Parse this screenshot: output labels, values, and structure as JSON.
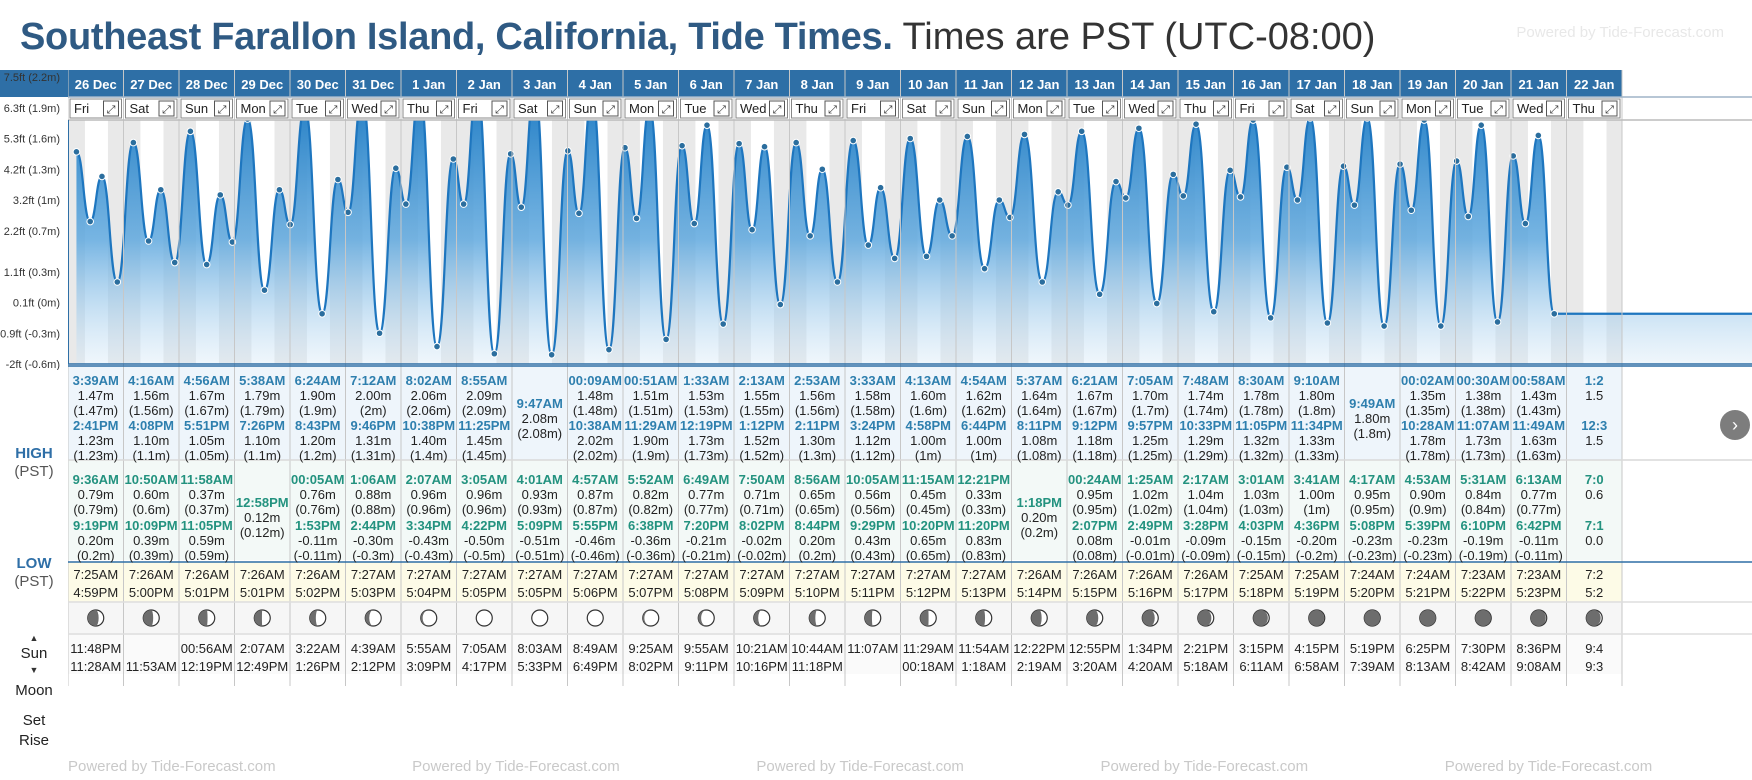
{
  "title": {
    "location": "Southeast Farallon Island, California, Tide Times.",
    "timezone": "Times are PST (UTC-08:00)"
  },
  "powered_by": "Powered by Tide-Forecast.com",
  "row_labels": {
    "high": "HIGH",
    "low": "LOW",
    "zone": "(PST)",
    "sun": "Sun",
    "moon": "Moon",
    "set": "Set",
    "rise": "Rise"
  },
  "axis_labels": [
    "7.5ft (2.2m)",
    "6.3ft (1.9m)",
    "5.3ft (1.6m)",
    "4.2ft (1.3m)",
    "3.2ft (1m)",
    "2.2ft (0.7m)",
    "1.1ft (0.3m)",
    "0.1ft (0m)",
    "-0.9ft (-0.3m)",
    "-2ft (-0.6m)"
  ],
  "days": [
    {
      "date": "26 Dec",
      "dow": "Fri",
      "high": [
        [
          "3:39AM",
          "1.47m",
          "(1.47m)"
        ],
        [
          "2:41PM",
          "1.23m",
          "(1.23m)"
        ]
      ],
      "low": [
        [
          "9:36AM",
          "0.79m",
          "(0.79m)"
        ],
        [
          "9:19PM",
          "0.20m",
          "(0.2m)"
        ]
      ],
      "sun": [
        "7:25AM",
        "4:59PM"
      ],
      "moon": [
        "11:48PM",
        "11:28AM"
      ],
      "phase": 0.32
    },
    {
      "date": "27 Dec",
      "dow": "Sat",
      "high": [
        [
          "4:16AM",
          "1.56m",
          "(1.56m)"
        ],
        [
          "4:08PM",
          "1.10m",
          "(1.1m)"
        ]
      ],
      "low": [
        [
          "10:50AM",
          "0.60m",
          "(0.6m)"
        ],
        [
          "10:09PM",
          "0.39m",
          "(0.39m)"
        ]
      ],
      "sun": [
        "7:26AM",
        "5:00PM"
      ],
      "moon": [
        "",
        "11:53AM"
      ],
      "phase": 0.38
    },
    {
      "date": "28 Dec",
      "dow": "Sun",
      "high": [
        [
          "4:56AM",
          "1.67m",
          "(1.67m)"
        ],
        [
          "5:51PM",
          "1.05m",
          "(1.05m)"
        ]
      ],
      "low": [
        [
          "11:58AM",
          "0.37m",
          "(0.37m)"
        ],
        [
          "11:05PM",
          "0.59m",
          "(0.59m)"
        ]
      ],
      "sun": [
        "7:26AM",
        "5:01PM"
      ],
      "moon": [
        "00:56AM",
        "12:19PM"
      ],
      "phase": 0.45
    },
    {
      "date": "29 Dec",
      "dow": "Mon",
      "high": [
        [
          "5:38AM",
          "1.79m",
          "(1.79m)"
        ],
        [
          "7:26PM",
          "1.10m",
          "(1.1m)"
        ]
      ],
      "low": [
        [
          "12:58PM",
          "0.12m",
          "(0.12m)"
        ]
      ],
      "sun": [
        "7:26AM",
        "5:01PM"
      ],
      "moon": [
        "2:07AM",
        "12:49PM"
      ],
      "phase": 0.52
    },
    {
      "date": "30 Dec",
      "dow": "Tue",
      "high": [
        [
          "6:24AM",
          "1.90m",
          "(1.9m)"
        ],
        [
          "8:43PM",
          "1.20m",
          "(1.2m)"
        ]
      ],
      "low": [
        [
          "00:05AM",
          "0.76m",
          "(0.76m)"
        ],
        [
          "1:53PM",
          "-0.11m",
          "(-0.11m)"
        ]
      ],
      "sun": [
        "7:26AM",
        "5:02PM"
      ],
      "moon": [
        "3:22AM",
        "1:26PM"
      ],
      "phase": 0.62
    },
    {
      "date": "31 Dec",
      "dow": "Wed",
      "high": [
        [
          "7:12AM",
          "2.00m",
          "(2m)"
        ],
        [
          "9:46PM",
          "1.31m",
          "(1.31m)"
        ]
      ],
      "low": [
        [
          "1:06AM",
          "0.88m",
          "(0.88m)"
        ],
        [
          "2:44PM",
          "-0.30m",
          "(-0.3m)"
        ]
      ],
      "sun": [
        "7:27AM",
        "5:03PM"
      ],
      "moon": [
        "4:39AM",
        "2:12PM"
      ],
      "phase": 0.75
    },
    {
      "date": "1 Jan",
      "dow": "Thu",
      "high": [
        [
          "8:02AM",
          "2.06m",
          "(2.06m)"
        ],
        [
          "10:38PM",
          "1.40m",
          "(1.4m)"
        ]
      ],
      "low": [
        [
          "2:07AM",
          "0.96m",
          "(0.96m)"
        ],
        [
          "3:34PM",
          "-0.43m",
          "(-0.43m)"
        ]
      ],
      "sun": [
        "7:27AM",
        "5:04PM"
      ],
      "moon": [
        "5:55AM",
        "3:09PM"
      ],
      "phase": 0.88
    },
    {
      "date": "2 Jan",
      "dow": "Fri",
      "high": [
        [
          "8:55AM",
          "2.09m",
          "(2.09m)"
        ],
        [
          "11:25PM",
          "1.45m",
          "(1.45m)"
        ]
      ],
      "low": [
        [
          "3:05AM",
          "0.96m",
          "(0.96m)"
        ],
        [
          "4:22PM",
          "-0.50m",
          "(-0.5m)"
        ]
      ],
      "sun": [
        "7:27AM",
        "5:05PM"
      ],
      "moon": [
        "7:05AM",
        "4:17PM"
      ],
      "phase": 0.98
    },
    {
      "date": "3 Jan",
      "dow": "Sat",
      "high": [
        [
          "9:47AM",
          "2.08m",
          "(2.08m)"
        ]
      ],
      "low": [
        [
          "4:01AM",
          "0.93m",
          "(0.93m)"
        ],
        [
          "5:09PM",
          "-0.51m",
          "(-0.51m)"
        ]
      ],
      "sun": [
        "7:27AM",
        "5:05PM"
      ],
      "moon": [
        "8:03AM",
        "5:33PM"
      ],
      "phase": 1.0
    },
    {
      "date": "4 Jan",
      "dow": "Sun",
      "high": [
        [
          "00:09AM",
          "1.48m",
          "(1.48m)"
        ],
        [
          "10:38AM",
          "2.02m",
          "(2.02m)"
        ]
      ],
      "low": [
        [
          "4:57AM",
          "0.87m",
          "(0.87m)"
        ],
        [
          "5:55PM",
          "-0.46m",
          "(-0.46m)"
        ]
      ],
      "sun": [
        "7:27AM",
        "5:06PM"
      ],
      "moon": [
        "8:49AM",
        "6:49PM"
      ],
      "phase": 0.97
    },
    {
      "date": "5 Jan",
      "dow": "Mon",
      "high": [
        [
          "00:51AM",
          "1.51m",
          "(1.51m)"
        ],
        [
          "11:29AM",
          "1.90m",
          "(1.9m)"
        ]
      ],
      "low": [
        [
          "5:52AM",
          "0.82m",
          "(0.82m)"
        ],
        [
          "6:38PM",
          "-0.36m",
          "(-0.36m)"
        ]
      ],
      "sun": [
        "7:27AM",
        "5:07PM"
      ],
      "moon": [
        "9:25AM",
        "8:02PM"
      ],
      "phase": 0.9
    },
    {
      "date": "6 Jan",
      "dow": "Tue",
      "high": [
        [
          "1:33AM",
          "1.53m",
          "(1.53m)"
        ],
        [
          "12:19PM",
          "1.73m",
          "(1.73m)"
        ]
      ],
      "low": [
        [
          "6:49AM",
          "0.77m",
          "(0.77m)"
        ],
        [
          "7:20PM",
          "-0.21m",
          "(-0.21m)"
        ]
      ],
      "sun": [
        "7:27AM",
        "5:08PM"
      ],
      "moon": [
        "9:55AM",
        "9:11PM"
      ],
      "phase": 0.82
    },
    {
      "date": "7 Jan",
      "dow": "Wed",
      "high": [
        [
          "2:13AM",
          "1.55m",
          "(1.55m)"
        ],
        [
          "1:12PM",
          "1.52m",
          "(1.52m)"
        ]
      ],
      "low": [
        [
          "7:50AM",
          "0.71m",
          "(0.71m)"
        ],
        [
          "8:02PM",
          "-0.02m",
          "(-0.02m)"
        ]
      ],
      "sun": [
        "7:27AM",
        "5:09PM"
      ],
      "moon": [
        "10:21AM",
        "10:16PM"
      ],
      "phase": 0.72
    },
    {
      "date": "8 Jan",
      "dow": "Thu",
      "high": [
        [
          "2:53AM",
          "1.56m",
          "(1.56m)"
        ],
        [
          "2:11PM",
          "1.30m",
          "(1.3m)"
        ]
      ],
      "low": [
        [
          "8:56AM",
          "0.65m",
          "(0.65m)"
        ],
        [
          "8:44PM",
          "0.20m",
          "(0.2m)"
        ]
      ],
      "sun": [
        "7:27AM",
        "5:10PM"
      ],
      "moon": [
        "10:44AM",
        "11:18PM"
      ],
      "phase": 0.62
    },
    {
      "date": "9 Jan",
      "dow": "Fri",
      "high": [
        [
          "3:33AM",
          "1.58m",
          "(1.58m)"
        ],
        [
          "3:24PM",
          "1.12m",
          "(1.12m)"
        ]
      ],
      "low": [
        [
          "10:05AM",
          "0.56m",
          "(0.56m)"
        ],
        [
          "9:29PM",
          "0.43m",
          "(0.43m)"
        ]
      ],
      "sun": [
        "7:27AM",
        "5:11PM"
      ],
      "moon": [
        "11:07AM",
        ""
      ],
      "phase": 0.55
    },
    {
      "date": "10 Jan",
      "dow": "Sat",
      "high": [
        [
          "4:13AM",
          "1.60m",
          "(1.6m)"
        ],
        [
          "4:58PM",
          "1.00m",
          "(1m)"
        ]
      ],
      "low": [
        [
          "11:15AM",
          "0.45m",
          "(0.45m)"
        ],
        [
          "10:20PM",
          "0.65m",
          "(0.65m)"
        ]
      ],
      "sun": [
        "7:27AM",
        "5:12PM"
      ],
      "moon": [
        "11:29AM",
        "00:18AM"
      ],
      "phase": 0.48
    },
    {
      "date": "11 Jan",
      "dow": "Sun",
      "high": [
        [
          "4:54AM",
          "1.62m",
          "(1.62m)"
        ],
        [
          "6:44PM",
          "1.00m",
          "(1m)"
        ]
      ],
      "low": [
        [
          "12:21PM",
          "0.33m",
          "(0.33m)"
        ],
        [
          "11:20PM",
          "0.83m",
          "(0.83m)"
        ]
      ],
      "sun": [
        "7:27AM",
        "5:13PM"
      ],
      "moon": [
        "11:54AM",
        "1:18AM"
      ],
      "phase": 0.42
    },
    {
      "date": "12 Jan",
      "dow": "Mon",
      "high": [
        [
          "5:37AM",
          "1.64m",
          "(1.64m)"
        ],
        [
          "8:11PM",
          "1.08m",
          "(1.08m)"
        ]
      ],
      "low": [
        [
          "1:18PM",
          "0.20m",
          "(0.2m)"
        ]
      ],
      "sun": [
        "7:26AM",
        "5:14PM"
      ],
      "moon": [
        "12:22PM",
        "2:19AM"
      ],
      "phase": 0.35
    },
    {
      "date": "13 Jan",
      "dow": "Tue",
      "high": [
        [
          "6:21AM",
          "1.67m",
          "(1.67m)"
        ],
        [
          "9:12PM",
          "1.18m",
          "(1.18m)"
        ]
      ],
      "low": [
        [
          "00:24AM",
          "0.95m",
          "(0.95m)"
        ],
        [
          "2:07PM",
          "0.08m",
          "(0.08m)"
        ]
      ],
      "sun": [
        "7:26AM",
        "5:15PM"
      ],
      "moon": [
        "12:55PM",
        "3:20AM"
      ],
      "phase": 0.28
    },
    {
      "date": "14 Jan",
      "dow": "Wed",
      "high": [
        [
          "7:05AM",
          "1.70m",
          "(1.7m)"
        ],
        [
          "9:57PM",
          "1.25m",
          "(1.25m)"
        ]
      ],
      "low": [
        [
          "1:25AM",
          "1.02m",
          "(1.02m)"
        ],
        [
          "2:49PM",
          "-0.01m",
          "(-0.01m)"
        ]
      ],
      "sun": [
        "7:26AM",
        "5:16PM"
      ],
      "moon": [
        "1:34PM",
        "4:20AM"
      ],
      "phase": 0.22
    },
    {
      "date": "15 Jan",
      "dow": "Thu",
      "high": [
        [
          "7:48AM",
          "1.74m",
          "(1.74m)"
        ],
        [
          "10:33PM",
          "1.29m",
          "(1.29m)"
        ]
      ],
      "low": [
        [
          "2:17AM",
          "1.04m",
          "(1.04m)"
        ],
        [
          "3:28PM",
          "-0.09m",
          "(-0.09m)"
        ]
      ],
      "sun": [
        "7:26AM",
        "5:17PM"
      ],
      "moon": [
        "2:21PM",
        "5:18AM"
      ],
      "phase": 0.15
    },
    {
      "date": "16 Jan",
      "dow": "Fri",
      "high": [
        [
          "8:30AM",
          "1.78m",
          "(1.78m)"
        ],
        [
          "11:05PM",
          "1.32m",
          "(1.32m)"
        ]
      ],
      "low": [
        [
          "3:01AM",
          "1.03m",
          "(1.03m)"
        ],
        [
          "4:03PM",
          "-0.15m",
          "(-0.15m)"
        ]
      ],
      "sun": [
        "7:25AM",
        "5:18PM"
      ],
      "moon": [
        "3:15PM",
        "6:11AM"
      ],
      "phase": 0.09
    },
    {
      "date": "17 Jan",
      "dow": "Sat",
      "high": [
        [
          "9:10AM",
          "1.80m",
          "(1.8m)"
        ],
        [
          "11:34PM",
          "1.33m",
          "(1.33m)"
        ]
      ],
      "low": [
        [
          "3:41AM",
          "1.00m",
          "(1m)"
        ],
        [
          "4:36PM",
          "-0.20m",
          "(-0.2m)"
        ]
      ],
      "sun": [
        "7:25AM",
        "5:19PM"
      ],
      "moon": [
        "4:15PM",
        "6:58AM"
      ],
      "phase": 0.04
    },
    {
      "date": "18 Jan",
      "dow": "Sun",
      "high": [
        [
          "9:49AM",
          "1.80m",
          "(1.8m)"
        ]
      ],
      "low": [
        [
          "4:17AM",
          "0.95m",
          "(0.95m)"
        ],
        [
          "5:08PM",
          "-0.23m",
          "(-0.23m)"
        ]
      ],
      "sun": [
        "7:24AM",
        "5:20PM"
      ],
      "moon": [
        "5:19PM",
        "7:39AM"
      ],
      "phase": 0.01
    },
    {
      "date": "19 Jan",
      "dow": "Mon",
      "high": [
        [
          "00:02AM",
          "1.35m",
          "(1.35m)"
        ],
        [
          "10:28AM",
          "1.78m",
          "(1.78m)"
        ]
      ],
      "low": [
        [
          "4:53AM",
          "0.90m",
          "(0.9m)"
        ],
        [
          "5:39PM",
          "-0.23m",
          "(-0.23m)"
        ]
      ],
      "sun": [
        "7:24AM",
        "5:21PM"
      ],
      "moon": [
        "6:25PM",
        "8:13AM"
      ],
      "phase": 0.0
    },
    {
      "date": "20 Jan",
      "dow": "Tue",
      "high": [
        [
          "00:30AM",
          "1.38m",
          "(1.38m)"
        ],
        [
          "11:07AM",
          "1.73m",
          "(1.73m)"
        ]
      ],
      "low": [
        [
          "5:31AM",
          "0.84m",
          "(0.84m)"
        ],
        [
          "6:10PM",
          "-0.19m",
          "(-0.19m)"
        ]
      ],
      "sun": [
        "7:23AM",
        "5:22PM"
      ],
      "moon": [
        "7:30PM",
        "8:42AM"
      ],
      "phase": 0.02
    },
    {
      "date": "21 Jan",
      "dow": "Wed",
      "high": [
        [
          "00:58AM",
          "1.43m",
          "(1.43m)"
        ],
        [
          "11:49AM",
          "1.63m",
          "(1.63m)"
        ]
      ],
      "low": [
        [
          "6:13AM",
          "0.77m",
          "(0.77m)"
        ],
        [
          "6:42PM",
          "-0.11m",
          "(-0.11m)"
        ]
      ],
      "sun": [
        "7:23AM",
        "5:23PM"
      ],
      "moon": [
        "8:36PM",
        "9:08AM"
      ],
      "phase": 0.06
    },
    {
      "date": "22 Jan",
      "dow": "Thu",
      "high": [
        [
          "1:2",
          "1.5",
          ""
        ],
        [
          "12:3",
          "1.5",
          ""
        ]
      ],
      "low": [
        [
          "7:0",
          "0.6",
          ""
        ],
        [
          "7:1",
          "0.0",
          ""
        ]
      ],
      "sun": [
        "7:2",
        "5:2"
      ],
      "moon": [
        "9:4",
        "9:3"
      ],
      "phase": 0.1
    }
  ]
}
